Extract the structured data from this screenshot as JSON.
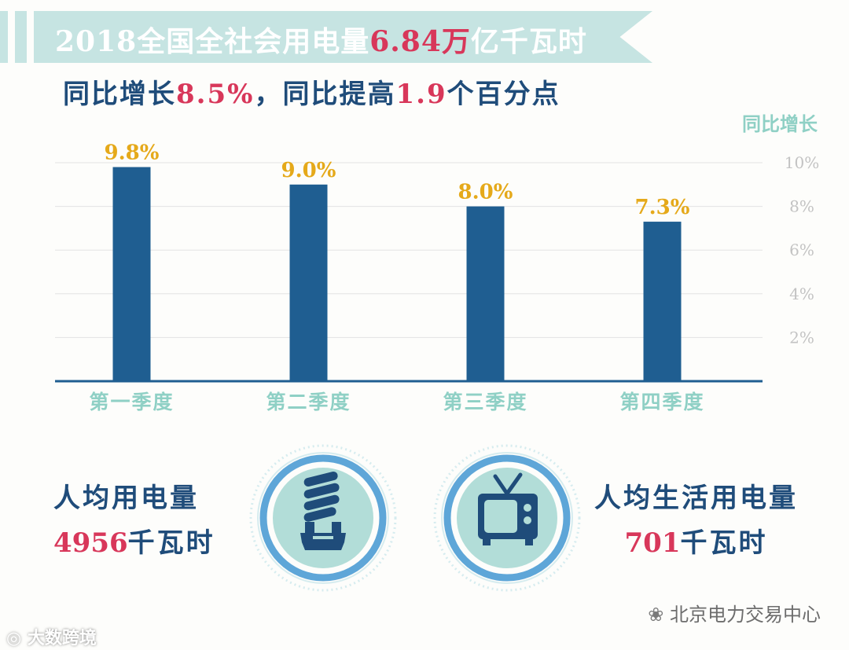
{
  "header": {
    "title_prefix": "2018全国全社会用电量",
    "title_value": "6.84万",
    "title_suffix": "亿千瓦时"
  },
  "subheader": {
    "part1": "同比增长",
    "value1": "8.5%",
    "part2": "，同比提高",
    "value2": "1.9",
    "part3": "个百分点"
  },
  "chart_data": {
    "type": "bar",
    "categories": [
      "第一季度",
      "第二季度",
      "第三季度",
      "第四季度"
    ],
    "values": [
      9.8,
      9.0,
      8.0,
      7.3
    ],
    "data_labels": [
      "9.8%",
      "9.0%",
      "8.0%",
      "7.3%"
    ],
    "ylabel": "同比增长",
    "yticks": [
      "2%",
      "4%",
      "6%",
      "8%",
      "10%"
    ],
    "ylim": [
      0,
      10
    ],
    "grid": true,
    "y_axis_side": "right",
    "colors": {
      "bar": "#1f5e91",
      "label": "#e5a91a",
      "category": "#8fd0c5",
      "tick": "#c3c3c3",
      "grid": "#e3e3e3",
      "axis": "#1f5e91"
    }
  },
  "stats": {
    "left": {
      "label": "人均用电量",
      "value": "4956",
      "unit": "千瓦时",
      "icon": "light-bulb-icon"
    },
    "right": {
      "label": "人均生活用电量",
      "value": "701",
      "unit": "千瓦时",
      "icon": "tv-icon"
    }
  },
  "watermarks": {
    "right": "北京电力交易中心",
    "left": "大数跨境"
  },
  "colors": {
    "banner": "#c6e4e2",
    "navy": "#1f4c7a",
    "accent": "#d8375a"
  }
}
